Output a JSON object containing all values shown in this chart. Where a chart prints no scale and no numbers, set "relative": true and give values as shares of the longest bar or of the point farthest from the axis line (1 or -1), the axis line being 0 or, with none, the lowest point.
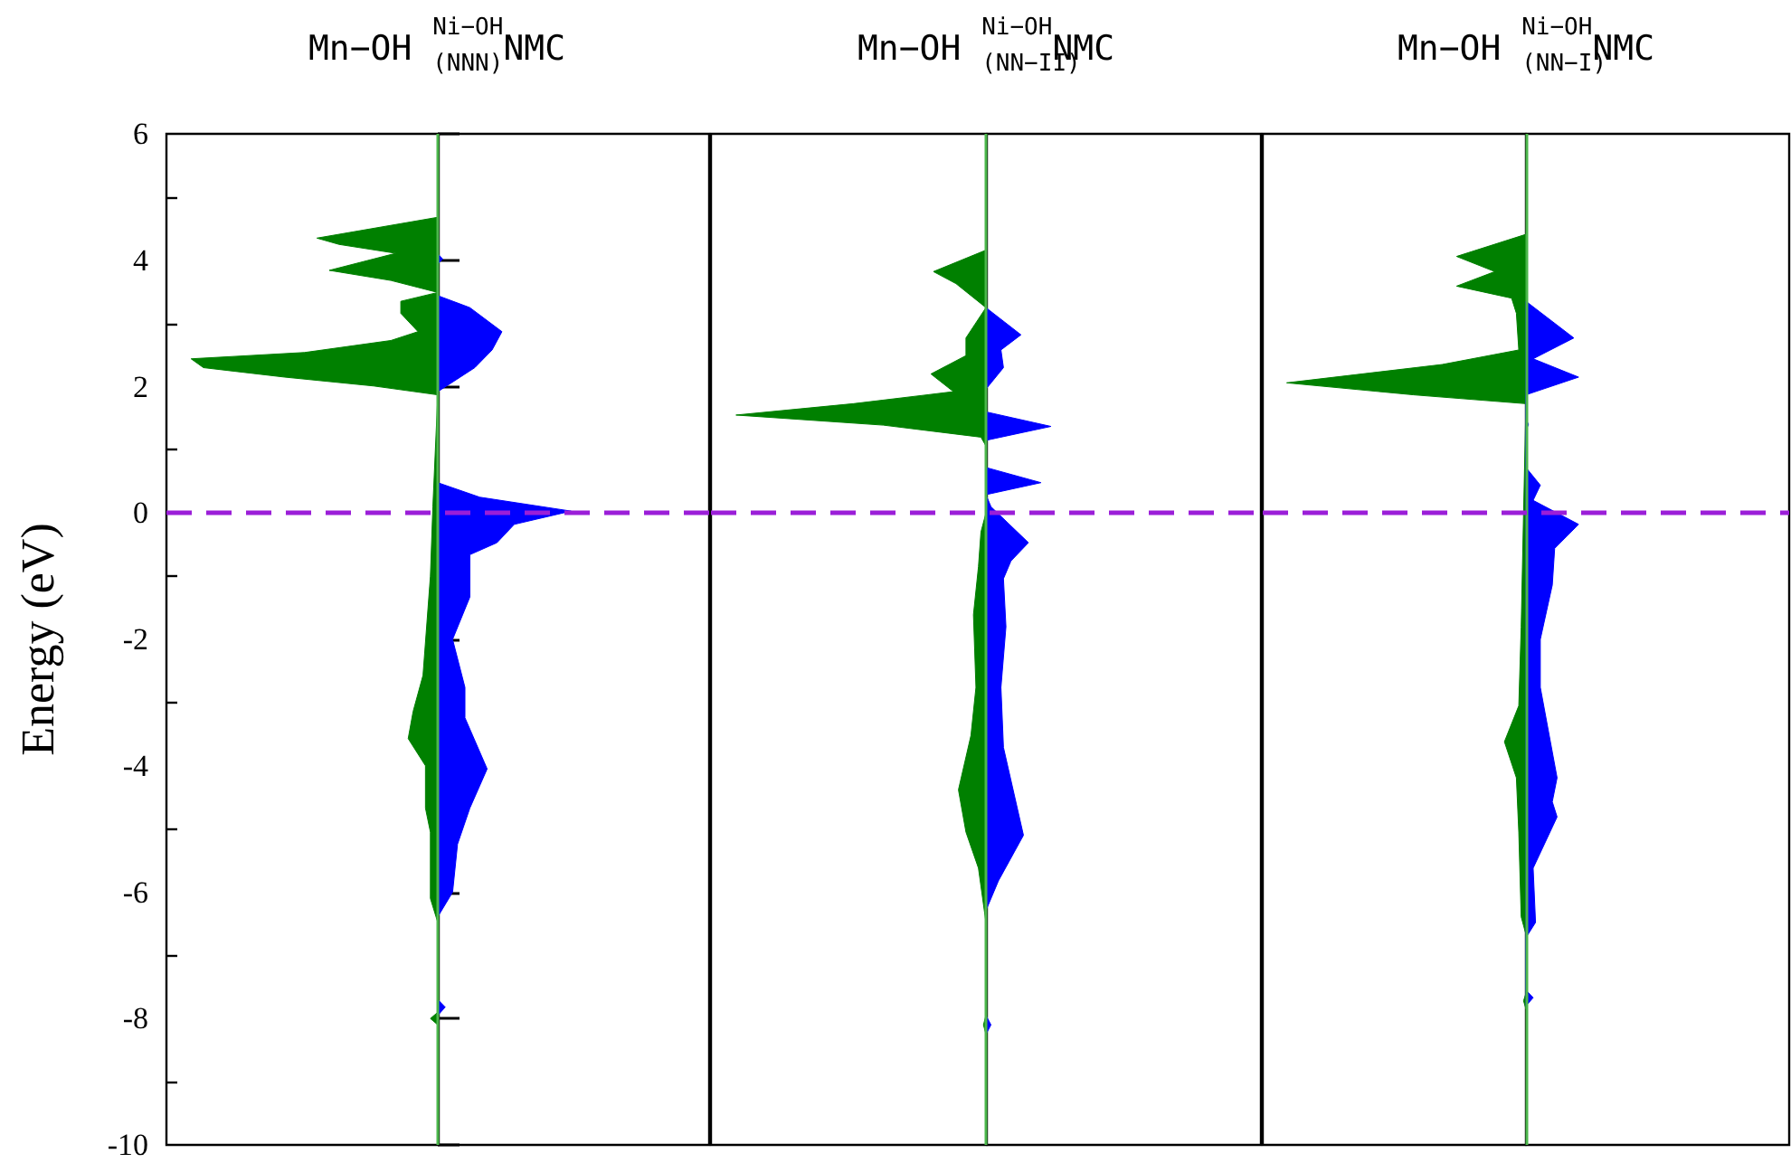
{
  "chart_data": [
    {
      "type": "area",
      "orientation": "horizontal",
      "relative": true,
      "title": "Mn−OH $_{(NNN)}$$^{Ni−OH}$NMC",
      "ylabel": "Energy (eV)",
      "ylim": [
        -10,
        6
      ],
      "yticks": [
        -10,
        -8,
        -6,
        -4,
        -2,
        0,
        2,
        4,
        6
      ],
      "tick_labels": "y",
      "ref_lines": [
        {
          "axis": "x",
          "value": 0,
          "color": "#4cb84c",
          "line_style": "solid"
        },
        {
          "axis": "y",
          "value": 0,
          "color": "#9b1ed8",
          "line_style": "dashed"
        }
      ],
      "series": [
        {
          "color": "#008000",
          "x": [
            4.68,
            4.35,
            4.25,
            4.11,
            3.84,
            3.68,
            3.49,
            3.35,
            3.16,
            2.87,
            2.73,
            2.54,
            2.44,
            2.3,
            2.15,
            2.01,
            1.87,
            0.1,
            -1.0,
            -2.57,
            -3.14,
            -3.57,
            -4.0,
            -4.67,
            -5.05,
            -6.1,
            -6.48,
            -7.9,
            -8.0,
            -8.1
          ],
          "values": [
            0,
            -0.49,
            -0.4,
            -0.17,
            -0.44,
            -0.19,
            0,
            -0.15,
            -0.15,
            -0.08,
            -0.19,
            -0.54,
            -1,
            -0.95,
            -0.62,
            -0.26,
            0,
            -0.02,
            -0.03,
            -0.06,
            -0.1,
            -0.12,
            -0.05,
            -0.05,
            -0.03,
            -0.03,
            0,
            0,
            -0.03,
            0
          ]
        },
        {
          "color": "#0000ff",
          "x": [
            4.1,
            4.02,
            3.94,
            3.44,
            3.25,
            2.87,
            2.58,
            2.3,
            1.92,
            0.48,
            0.25,
            0.03,
            -0.18,
            -0.47,
            -0.66,
            -1.33,
            -2.0,
            -2.76,
            -3.24,
            -4.05,
            -4.67,
            -5.24,
            -6.0,
            -6.39,
            -7.7,
            -7.82,
            -7.95
          ],
          "values": [
            0,
            0.02,
            0,
            0,
            0.13,
            0.26,
            0.22,
            0.15,
            0,
            0,
            0.17,
            0.54,
            0.31,
            0.24,
            0.13,
            0.13,
            0.06,
            0.11,
            0.11,
            0.2,
            0.13,
            0.08,
            0.06,
            0,
            0,
            0.03,
            0
          ]
        }
      ]
    },
    {
      "type": "area",
      "orientation": "horizontal",
      "relative": true,
      "title": "Mn−OH $_{(NN−II)}$$^{Ni−OH}$NMC",
      "ylim": [
        -10,
        6
      ],
      "yticks": [
        -10,
        -8,
        -6,
        -4,
        -2,
        0,
        2,
        4,
        6
      ],
      "tick_labels": false,
      "ref_lines": [
        {
          "axis": "x",
          "value": 0,
          "color": "#4cb84c",
          "line_style": "solid"
        },
        {
          "axis": "y",
          "value": 0,
          "color": "#9b1ed8",
          "line_style": "dashed"
        }
      ],
      "series": [
        {
          "color": "#008000",
          "x": [
            4.16,
            3.82,
            3.63,
            3.25,
            2.77,
            2.49,
            2.2,
            1.92,
            1.73,
            1.55,
            1.39,
            1.2,
            1.06,
            0,
            -0.3,
            -0.85,
            -1.61,
            -2.76,
            -3.52,
            -4.38,
            -5.05,
            -5.62,
            -6.48,
            -7.95,
            -8.1,
            -8.25
          ],
          "values": [
            0,
            -0.21,
            -0.12,
            0,
            -0.08,
            -0.08,
            -0.22,
            -0.13,
            -0.53,
            -1,
            -0.41,
            -0.02,
            0,
            0,
            -0.02,
            -0.03,
            -0.05,
            -0.04,
            -0.06,
            -0.11,
            -0.08,
            -0.03,
            0,
            0,
            -0.01,
            0
          ]
        },
        {
          "color": "#0000ff",
          "x": [
            3.25,
            2.82,
            2.58,
            2.3,
            1.96,
            1.6,
            1.37,
            1.15,
            0.72,
            0.48,
            0.29,
            0.1,
            -0.47,
            -0.76,
            -1.04,
            -1.8,
            -2.76,
            -3.71,
            -5.1,
            -5.82,
            -6.29,
            -7.95,
            -8.1,
            -8.25
          ],
          "values": [
            0,
            0.14,
            0.06,
            0.07,
            0,
            0,
            0.26,
            0,
            0,
            0.22,
            0,
            0.02,
            0.17,
            0.1,
            0.07,
            0.08,
            0.06,
            0.07,
            0.15,
            0.05,
            0,
            0,
            0.02,
            0
          ]
        }
      ]
    },
    {
      "type": "area",
      "orientation": "horizontal",
      "relative": true,
      "title": "Mn−OH $_{(NN−I)}$$^{Ni−OH}$NMC",
      "ylim": [
        -10,
        6
      ],
      "yticks": [
        -10,
        -8,
        -6,
        -4,
        -2,
        0,
        2,
        4,
        6
      ],
      "tick_labels": false,
      "ref_lines": [
        {
          "axis": "x",
          "value": 0,
          "color": "#4cb84c",
          "line_style": "solid"
        },
        {
          "axis": "y",
          "value": 0,
          "color": "#9b1ed8",
          "line_style": "dashed"
        }
      ],
      "series": [
        {
          "color": "#008000",
          "x": [
            4.41,
            4.06,
            3.82,
            3.59,
            3.4,
            3.16,
            2.58,
            2.35,
            2.06,
            1.87,
            1.73,
            0,
            -1.81,
            -3.05,
            -3.62,
            -4.19,
            -5.05,
            -6.39,
            -6.67,
            -7.6,
            -7.72,
            -7.85
          ],
          "values": [
            0,
            -0.29,
            -0.13,
            -0.29,
            -0.06,
            -0.04,
            -0.03,
            -0.35,
            -1,
            -0.47,
            0,
            -0.01,
            -0.02,
            -0.03,
            -0.09,
            -0.04,
            -0.03,
            -0.02,
            0,
            0,
            -0.01,
            0
          ]
        },
        {
          "color": "#0000ff",
          "x": [
            3.35,
            2.77,
            2.44,
            2.15,
            1.87,
            1.5,
            1.4,
            1.3,
            0.72,
            0.44,
            0.2,
            -0.18,
            -0.56,
            -1.14,
            -2.0,
            -2.76,
            -4.19,
            -4.57,
            -4.81,
            -5.62,
            -6.48,
            -6.72,
            -7.55,
            -7.67,
            -7.8
          ],
          "values": [
            0,
            0.2,
            0.03,
            0.22,
            0,
            0,
            0.01,
            0,
            0,
            0.06,
            0.03,
            0.22,
            0.12,
            0.11,
            0.06,
            0.06,
            0.13,
            0.11,
            0.13,
            0.03,
            0.04,
            0,
            0,
            0.03,
            0
          ]
        }
      ]
    }
  ]
}
